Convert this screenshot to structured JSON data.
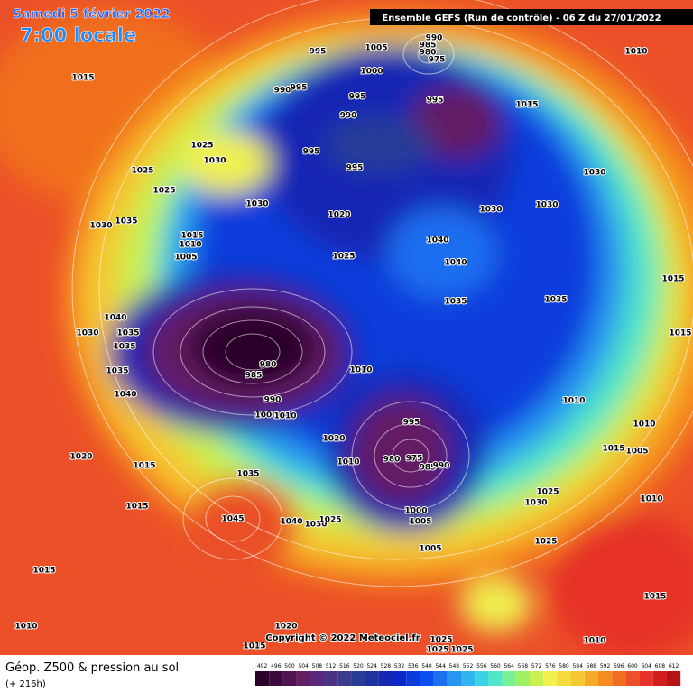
{
  "header": {
    "date": "Samedi 5 février 2022",
    "time": "7:00 locale",
    "run": "Ensemble GEFS  (Run de contrôle)  -  06 Z du 27/01/2022"
  },
  "footer": {
    "title": "Géop. Z500 & pression au sol",
    "lead": "(+ 216h)",
    "copyright": "Copyright © 2022 Meteociel.fr"
  },
  "legend": {
    "values": [
      492,
      496,
      500,
      504,
      508,
      512,
      516,
      520,
      524,
      528,
      532,
      536,
      540,
      544,
      548,
      552,
      556,
      560,
      564,
      568,
      572,
      576,
      580,
      584,
      588,
      592,
      596,
      600,
      604,
      608,
      612
    ],
    "colors": [
      "#2a002a",
      "#3c0a3c",
      "#501450",
      "#641e64",
      "#5a2878",
      "#4b3282",
      "#3c3c8c",
      "#283c96",
      "#1e32a0",
      "#1428b4",
      "#0a28c8",
      "#0a3cdc",
      "#0a50f0",
      "#1e6ef0",
      "#2896f0",
      "#32b4f0",
      "#3cd2e6",
      "#50e6c8",
      "#78f096",
      "#a0f064",
      "#c8f050",
      "#f0f050",
      "#f5dc3c",
      "#f5c832",
      "#f5aa28",
      "#f58c1e",
      "#f06e1e",
      "#eb5028",
      "#e63228",
      "#d21e1e",
      "#b41414"
    ]
  },
  "pressure_labels": [
    995,
    1005,
    990,
    985,
    980,
    975,
    1000,
    1010,
    1015,
    990,
    995,
    995,
    990,
    995,
    1015,
    1025,
    1030,
    995,
    995,
    1025,
    1030,
    1025,
    1030,
    1020,
    1030,
    1030,
    1030,
    1035,
    1015,
    1010,
    1005,
    1040,
    1025,
    1040,
    1015,
    1035,
    1035,
    1040,
    1030,
    1035,
    1035,
    1015,
    980,
    985,
    1010,
    1035,
    1040,
    1010,
    990,
    1000,
    1010,
    1010,
    995,
    1020,
    1015,
    1005,
    1010,
    980,
    975,
    985,
    990,
    1020,
    1015,
    1035,
    1025,
    1030,
    1010,
    1015,
    1000,
    1005,
    1045,
    1040,
    1030,
    1025,
    1005,
    1025,
    1015,
    1015,
    1010,
    1020,
    1025,
    1015,
    1025,
    1025,
    1010
  ]
}
